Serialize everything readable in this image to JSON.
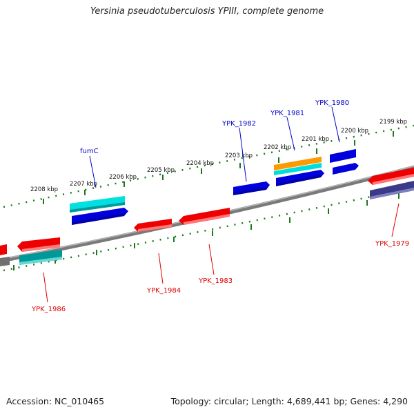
{
  "title": "Yersinia pseudotuberculosis YPIII, complete genome",
  "footer": {
    "accession": "Accession: NC_010465",
    "topology": "Topology: circular; Length: 4,689,441 bp; Genes: 4,290"
  },
  "colors": {
    "forward_label": "#0000cc",
    "reverse_label": "#dd0000",
    "tick": "#1a7a1a",
    "backbone": "#808080"
  },
  "kbp_labels": [
    "2208 kbp",
    "2207 kbp",
    "2206 kbp",
    "2205 kbp",
    "2204 kbp",
    "2203 kbp",
    "2202 kbp",
    "2201 kbp",
    "2200 kbp",
    "2199 kbp"
  ],
  "gene_labels": {
    "fumC": "fumC",
    "ypk1982": "YPK_1982",
    "ypk1981": "YPK_1981",
    "ypk1980": "YPK_1980",
    "ypk1979": "YPK_1979",
    "ypk1984": "YPK_1984",
    "ypk1983": "YPK_1983",
    "ypk1986": "YPK_1986"
  }
}
